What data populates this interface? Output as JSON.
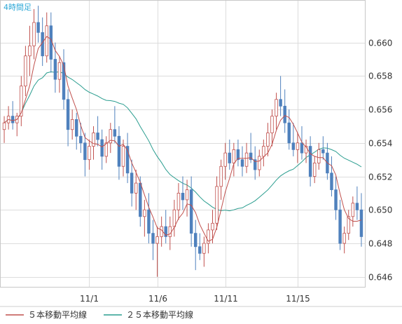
{
  "chart_data": {
    "type": "candlestick",
    "title": "4時間足",
    "x_tick_labels": [
      "11/1",
      "11/6",
      "11/11",
      "11/15"
    ],
    "ylim": [
      0.6454,
      0.6625
    ],
    "y_ticks": [
      0.646,
      0.648,
      0.65,
      0.652,
      0.654,
      0.656,
      0.658,
      0.66
    ],
    "grid": true,
    "legend_position": "bottom-left",
    "colors": {
      "up": "#ffffff",
      "up_border": "#c0504d",
      "down": "#4f81bd",
      "ma5": "#c0504d",
      "ma25": "#2a9d8f",
      "title": "#2ba7d6"
    },
    "series": [
      {
        "name": "５本移動平均線",
        "color": "#c0504d"
      },
      {
        "name": "２５本移動平均線",
        "color": "#2a9d8f"
      }
    ],
    "ohlc": [
      [
        0.6548,
        0.6556,
        0.654,
        0.6552
      ],
      [
        0.6552,
        0.6562,
        0.6548,
        0.6556
      ],
      [
        0.6556,
        0.6565,
        0.6548,
        0.6552
      ],
      [
        0.6552,
        0.6558,
        0.6544,
        0.6556
      ],
      [
        0.6556,
        0.658,
        0.655,
        0.6574
      ],
      [
        0.6574,
        0.6598,
        0.6568,
        0.6592
      ],
      [
        0.6592,
        0.661,
        0.658,
        0.6598
      ],
      [
        0.6598,
        0.662,
        0.659,
        0.6612
      ],
      [
        0.6612,
        0.6622,
        0.66,
        0.6606
      ],
      [
        0.6606,
        0.6615,
        0.6586,
        0.6592
      ],
      [
        0.6592,
        0.6618,
        0.6588,
        0.661
      ],
      [
        0.661,
        0.6618,
        0.6582,
        0.659
      ],
      [
        0.659,
        0.66,
        0.657,
        0.6578
      ],
      [
        0.6578,
        0.6592,
        0.657,
        0.6588
      ],
      [
        0.6588,
        0.6596,
        0.656,
        0.6566
      ],
      [
        0.6566,
        0.6572,
        0.6538,
        0.6548
      ],
      [
        0.6548,
        0.656,
        0.6542,
        0.6554
      ],
      [
        0.6554,
        0.6558,
        0.6536,
        0.6544
      ],
      [
        0.6544,
        0.6552,
        0.6534,
        0.654
      ],
      [
        0.654,
        0.6546,
        0.652,
        0.653
      ],
      [
        0.653,
        0.6542,
        0.6524,
        0.6538
      ],
      [
        0.6538,
        0.655,
        0.653,
        0.6546
      ],
      [
        0.6546,
        0.6556,
        0.6538,
        0.6542
      ],
      [
        0.6542,
        0.6548,
        0.6524,
        0.6532
      ],
      [
        0.6532,
        0.6544,
        0.6528,
        0.654
      ],
      [
        0.654,
        0.6552,
        0.6534,
        0.6548
      ],
      [
        0.6548,
        0.6562,
        0.654,
        0.6544
      ],
      [
        0.6544,
        0.655,
        0.6518,
        0.6526
      ],
      [
        0.6526,
        0.6542,
        0.652,
        0.6538
      ],
      [
        0.6538,
        0.6546,
        0.6516,
        0.6522
      ],
      [
        0.6522,
        0.653,
        0.6502,
        0.651
      ],
      [
        0.651,
        0.6524,
        0.65,
        0.6516
      ],
      [
        0.6516,
        0.652,
        0.649,
        0.6496
      ],
      [
        0.6496,
        0.6506,
        0.6484,
        0.65
      ],
      [
        0.65,
        0.651,
        0.648,
        0.6486
      ],
      [
        0.6486,
        0.6494,
        0.647,
        0.648
      ],
      [
        0.648,
        0.649,
        0.646,
        0.6484
      ],
      [
        0.6484,
        0.6496,
        0.6478,
        0.649
      ],
      [
        0.649,
        0.65,
        0.648,
        0.6484
      ],
      [
        0.6484,
        0.6496,
        0.6476,
        0.649
      ],
      [
        0.649,
        0.6506,
        0.6484,
        0.65
      ],
      [
        0.65,
        0.6516,
        0.6494,
        0.651
      ],
      [
        0.651,
        0.652,
        0.65,
        0.6506
      ],
      [
        0.6506,
        0.6518,
        0.6496,
        0.6512
      ],
      [
        0.6512,
        0.652,
        0.6478,
        0.6486
      ],
      [
        0.6486,
        0.6494,
        0.6464,
        0.6478
      ],
      [
        0.6478,
        0.6486,
        0.647,
        0.6474
      ],
      [
        0.6474,
        0.6484,
        0.6466,
        0.648
      ],
      [
        0.648,
        0.6492,
        0.6474,
        0.6488
      ],
      [
        0.6488,
        0.65,
        0.648,
        0.6492
      ],
      [
        0.6492,
        0.652,
        0.6488,
        0.6514
      ],
      [
        0.6514,
        0.653,
        0.6506,
        0.6526
      ],
      [
        0.6526,
        0.654,
        0.6518,
        0.6534
      ],
      [
        0.6534,
        0.6542,
        0.6524,
        0.6528
      ],
      [
        0.6528,
        0.654,
        0.652,
        0.6536
      ],
      [
        0.6536,
        0.6542,
        0.6526,
        0.653
      ],
      [
        0.653,
        0.6538,
        0.652,
        0.6526
      ],
      [
        0.6526,
        0.654,
        0.6522,
        0.6534
      ],
      [
        0.6534,
        0.6546,
        0.6528,
        0.653
      ],
      [
        0.653,
        0.6538,
        0.6518,
        0.6524
      ],
      [
        0.6524,
        0.6536,
        0.652,
        0.6532
      ],
      [
        0.6532,
        0.6542,
        0.6526,
        0.6538
      ],
      [
        0.6538,
        0.6552,
        0.6532,
        0.6546
      ],
      [
        0.6546,
        0.656,
        0.6538,
        0.6556
      ],
      [
        0.6556,
        0.657,
        0.6548,
        0.6566
      ],
      [
        0.6566,
        0.658,
        0.6556,
        0.6562
      ],
      [
        0.6562,
        0.6572,
        0.6546,
        0.6552
      ],
      [
        0.6552,
        0.656,
        0.6536,
        0.654
      ],
      [
        0.654,
        0.6552,
        0.6532,
        0.6536
      ],
      [
        0.6536,
        0.6546,
        0.6528,
        0.654
      ],
      [
        0.654,
        0.655,
        0.653,
        0.6534
      ],
      [
        0.6534,
        0.6542,
        0.6528,
        0.6538
      ],
      [
        0.6538,
        0.6544,
        0.6514,
        0.652
      ],
      [
        0.652,
        0.6532,
        0.6516,
        0.6528
      ],
      [
        0.6528,
        0.654,
        0.6524,
        0.6536
      ],
      [
        0.6536,
        0.6544,
        0.653,
        0.6534
      ],
      [
        0.6534,
        0.654,
        0.6518,
        0.6522
      ],
      [
        0.6522,
        0.6532,
        0.6508,
        0.6512
      ],
      [
        0.6512,
        0.652,
        0.6494,
        0.65
      ],
      [
        0.65,
        0.6506,
        0.6476,
        0.648
      ],
      [
        0.648,
        0.649,
        0.6474,
        0.6486
      ],
      [
        0.6486,
        0.65,
        0.6482,
        0.6496
      ],
      [
        0.6496,
        0.6508,
        0.649,
        0.6504
      ],
      [
        0.6504,
        0.6514,
        0.6494,
        0.65
      ],
      [
        0.65,
        0.651,
        0.6478,
        0.6484
      ]
    ]
  }
}
